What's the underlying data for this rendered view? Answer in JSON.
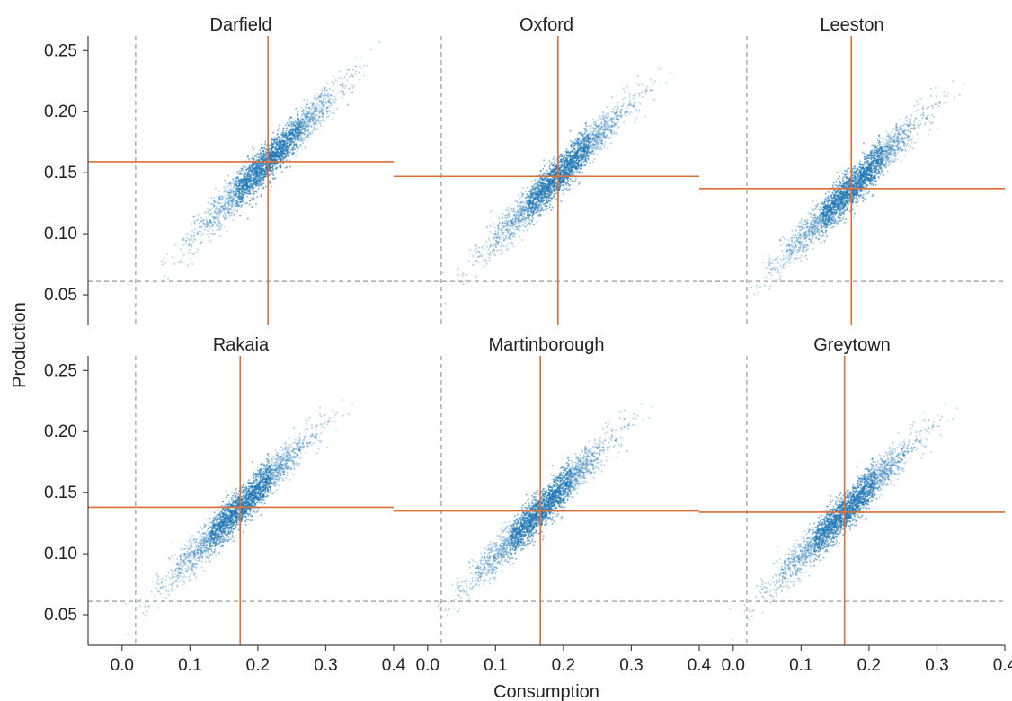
{
  "chart_data": {
    "type": "scatter",
    "xlabel": "Consumption",
    "ylabel": "Production",
    "xlim": [
      -0.05,
      0.4
    ],
    "ylim": [
      0.025,
      0.262
    ],
    "x_ticks": [
      0.0,
      0.1,
      0.2,
      0.3,
      0.4
    ],
    "x_tick_labels": [
      "0.0",
      "0.1",
      "0.2",
      "0.3",
      "0.4"
    ],
    "y_ticks": [
      0.05,
      0.1,
      0.15,
      0.2,
      0.25
    ],
    "y_tick_labels": [
      "0.05",
      "0.10",
      "0.15",
      "0.20",
      "0.25"
    ],
    "reference_lines": {
      "x": 0.02,
      "y": 0.061,
      "style": "dashed",
      "color": "#999999"
    },
    "point_color": "#1f77b4",
    "mean_line_color": "#dd6e35",
    "layout": {
      "rows": 2,
      "cols": 3,
      "shared_axes": true,
      "grid": false
    },
    "panels": [
      {
        "title": "Darfield",
        "mean_x": 0.215,
        "mean_y": 0.159,
        "cloud": {
          "slope": 0.56,
          "x_spread": 0.052,
          "y_spread": 0.0075,
          "x_min": 0.04,
          "x_max": 0.38
        }
      },
      {
        "title": "Oxford",
        "mean_x": 0.192,
        "mean_y": 0.147,
        "cloud": {
          "slope": 0.56,
          "x_spread": 0.05,
          "y_spread": 0.0075,
          "x_min": 0.02,
          "x_max": 0.36
        }
      },
      {
        "title": "Leeston",
        "mean_x": 0.174,
        "mean_y": 0.137,
        "cloud": {
          "slope": 0.56,
          "x_spread": 0.05,
          "y_spread": 0.0075,
          "x_min": 0.02,
          "x_max": 0.34
        }
      },
      {
        "title": "Rakaia",
        "mean_x": 0.174,
        "mean_y": 0.138,
        "cloud": {
          "slope": 0.56,
          "x_spread": 0.05,
          "y_spread": 0.0075,
          "x_min": -0.03,
          "x_max": 0.36
        }
      },
      {
        "title": "Martinborough",
        "mean_x": 0.166,
        "mean_y": 0.135,
        "cloud": {
          "slope": 0.56,
          "x_spread": 0.05,
          "y_spread": 0.0075,
          "x_min": 0.01,
          "x_max": 0.34
        }
      },
      {
        "title": "Greytown",
        "mean_x": 0.164,
        "mean_y": 0.134,
        "cloud": {
          "slope": 0.56,
          "x_spread": 0.05,
          "y_spread": 0.0075,
          "x_min": -0.03,
          "x_max": 0.35
        }
      }
    ]
  }
}
